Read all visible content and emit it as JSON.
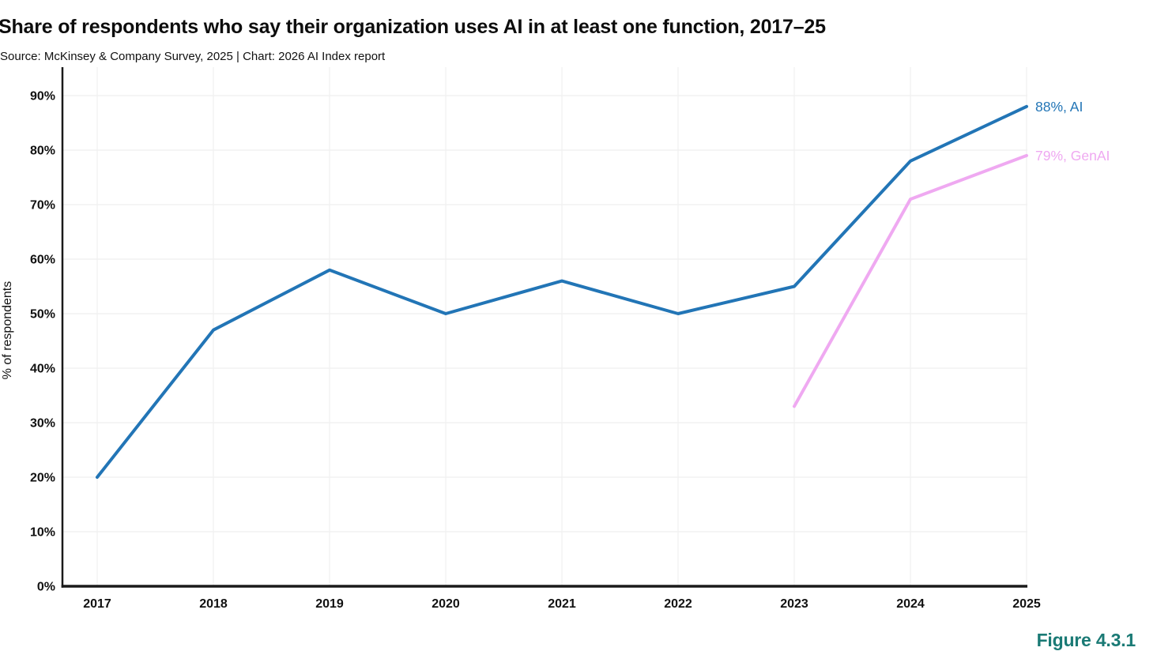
{
  "page": {
    "title": "Share of respondents who say their organization uses AI in at least one function, 2017–25",
    "subtitle": "Source: McKinsey & Company Survey, 2025 | Chart: 2026 AI Index report",
    "figure_label": "Figure 4.3.1"
  },
  "colors": {
    "ai_line": "#2275B6",
    "genai_line": "#EFA9F1",
    "axis": "#1A1A1A",
    "grid": "#EFEFEF",
    "tick_text": "#111111",
    "figure_label": "#1A7A75"
  },
  "chart_data": {
    "type": "line",
    "title": "Share of respondents who say their organization uses AI in at least one function, 2017–25",
    "xlabel": "",
    "ylabel": "% of respondents",
    "x_ticks": [
      "2017",
      "2018",
      "2019",
      "2020",
      "2021",
      "2022",
      "2023",
      "2024",
      "2025"
    ],
    "y_ticks": [
      "0%",
      "10%",
      "20%",
      "30%",
      "40%",
      "50%",
      "60%",
      "70%",
      "80%",
      "90%"
    ],
    "ylim": [
      0,
      90
    ],
    "grid": true,
    "legend_position": "end-of-line-labels",
    "series": [
      {
        "name": "AI",
        "color": "#2275B6",
        "end_label": "88%, AI",
        "x": [
          2017,
          2018,
          2019,
          2020,
          2021,
          2022,
          2023,
          2024,
          2025
        ],
        "values": [
          20,
          47,
          58,
          50,
          56,
          50,
          55,
          78,
          88
        ]
      },
      {
        "name": "GenAI",
        "color": "#EFA9F1",
        "end_label": "79%, GenAI",
        "x": [
          2023,
          2024,
          2025
        ],
        "values": [
          33,
          71,
          79
        ]
      }
    ]
  }
}
